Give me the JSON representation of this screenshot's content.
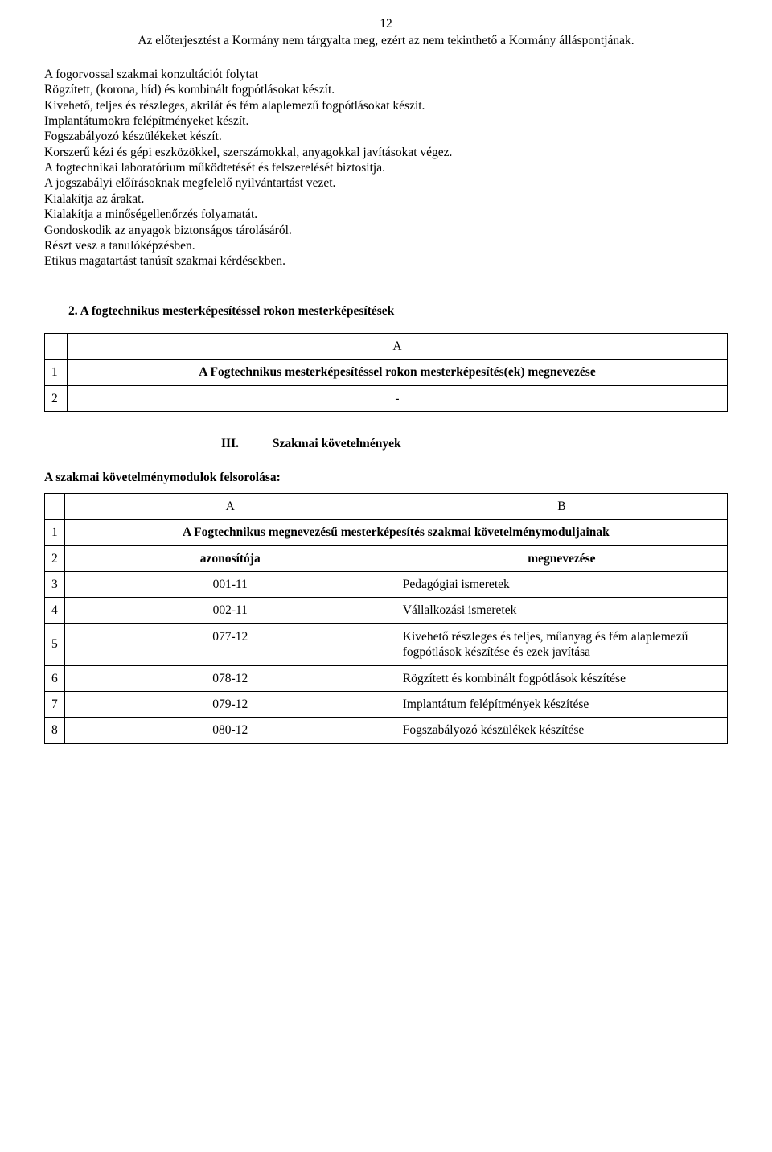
{
  "page_number": "12",
  "header_disclaimer": "Az előterjesztést a Kormány nem tárgyalta meg, ezért az nem tekinthető a Kormány álláspontjának.",
  "body_paragraph_lines": [
    "A fogorvossal szakmai konzultációt folytat",
    "Rögzített, (korona, híd) és kombinált fogpótlásokat készít.",
    "Kivehető, teljes és részleges, akrilát és fém alaplemezű fogpótlásokat készít.",
    "Implantátumokra felépítményeket készít.",
    "Fogszabályozó készülékeket készít.",
    "Korszerű kézi és gépi eszközökkel, szerszámokkal, anyagokkal javításokat végez.",
    "A fogtechnikai laboratórium működtetését és felszerelését biztosítja.",
    "A jogszabályi előírásoknak megfelelő nyilvántartást vezet.",
    "Kialakítja az árakat.",
    "Kialakítja a minőségellenőrzés folyamatát.",
    "Gondoskodik az anyagok biztonságos tárolásáról.",
    "Részt vesz a tanulóképzésben.",
    "Etikus magatartást tanúsít szakmai kérdésekben."
  ],
  "section2_heading": "2. A fogtechnikus mesterképesítéssel rokon mesterképesítések",
  "table1": {
    "header_letter": "A",
    "rows": [
      {
        "n": "1",
        "text": "A Fogtechnikus mesterképesítéssel rokon mesterképesítés(ek) megnevezése",
        "bold": true
      },
      {
        "n": "2",
        "text": "-",
        "bold": false
      }
    ]
  },
  "section3": {
    "roman": "III.",
    "title": "Szakmai követelmények"
  },
  "sub_heading": "A szakmai követelménymodulok felsorolása:",
  "table2": {
    "header_letters": [
      "A",
      "B"
    ],
    "row1": {
      "n": "1",
      "text": "A Fogtechnikus megnevezésű mesterképesítés szakmai követelménymoduljainak"
    },
    "row2": {
      "n": "2",
      "a": "azonosítója",
      "b": "megnevezése"
    },
    "data_rows": [
      {
        "n": "3",
        "a": "001-11",
        "b": "Pedagógiai ismeretek"
      },
      {
        "n": "4",
        "a": "002-11",
        "b": "Vállalkozási ismeretek"
      },
      {
        "n": "5",
        "a": "077-12",
        "b": "Kivehető részleges és teljes, műanyag és fém alaplemezű fogpótlások készítése és ezek javítása"
      },
      {
        "n": "6",
        "a": "078-12",
        "b": "Rögzített és kombinált fogpótlások készítése"
      },
      {
        "n": "7",
        "a": "079-12",
        "b": "Implantátum felépítmények készítése"
      },
      {
        "n": "8",
        "a": "080-12",
        "b": "Fogszabályozó készülékek készítése"
      }
    ]
  }
}
